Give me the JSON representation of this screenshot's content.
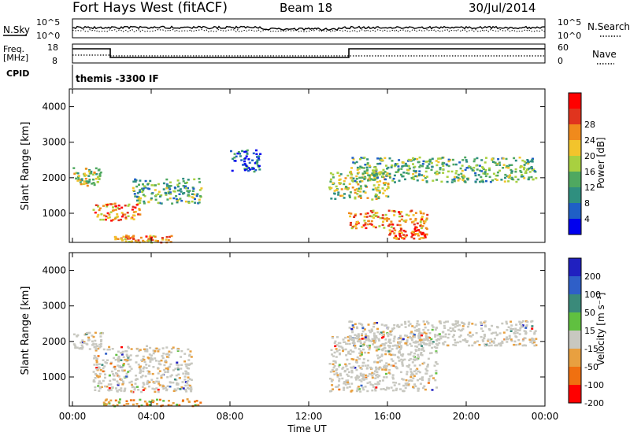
{
  "header": {
    "title": "Fort Hays West (fitACF)",
    "beam": "Beam 18",
    "date": "30/Jul/2014"
  },
  "strips": {
    "nsky_label": "N.Sky",
    "nsearch_label": "N.Search",
    "noise_ticks_left": [
      "10^5",
      "10^0"
    ],
    "noise_ticks_right": [
      "10^5",
      "10^0"
    ],
    "freq_label": "Freq.",
    "freq_unit": "[MHz]",
    "freq_ticks": [
      "18",
      "8"
    ],
    "nave_label": "Nave",
    "nave_ticks": [
      "60",
      "0"
    ],
    "cpid_label": "CPID",
    "cpid_text": "themis -3300 IF"
  },
  "axes": {
    "ylabel": "Slant Range [km]",
    "xlabel": "Time UT",
    "yticks": [
      "1000",
      "2000",
      "3000",
      "4000"
    ],
    "xticks": [
      "00:00",
      "04:00",
      "08:00",
      "12:00",
      "16:00",
      "20:00",
      "00:00"
    ]
  },
  "colorbars": {
    "power": {
      "label": "Power [dB]",
      "ticks": [
        "4",
        "8",
        "12",
        "16",
        "20",
        "24",
        "28"
      ],
      "colors": [
        "#0000ee",
        "#1f5fc6",
        "#2f8f7f",
        "#4fa860",
        "#a8d040",
        "#f2c42c",
        "#f08a1c",
        "#e0341e",
        "#ff0000"
      ]
    },
    "velocity": {
      "label": "Velocity [m s⁻¹]",
      "ticks": [
        "200",
        "100",
        "50",
        "15",
        "-15",
        "-50",
        "-100",
        "-200"
      ],
      "colors": [
        "#2020c0",
        "#2f5fc8",
        "#3a8a7a",
        "#60c040",
        "#c8c8c0",
        "#e8a040",
        "#f07010",
        "#ff0000"
      ]
    }
  },
  "chart_data": [
    {
      "type": "heatmap",
      "title": "Power",
      "x_range_hours": [
        0,
        24
      ],
      "y_range_km": [
        180,
        4500
      ],
      "colorbar_ticks": [
        4,
        8,
        12,
        16,
        20,
        24,
        28
      ],
      "echo_regions": [
        {
          "t": [
            0.0,
            1.4
          ],
          "range": [
            1800,
            2300
          ],
          "level": "medium-high"
        },
        {
          "t": [
            1.0,
            3.4
          ],
          "range": [
            800,
            1300
          ],
          "level": "high"
        },
        {
          "t": [
            2.0,
            5.0
          ],
          "range": [
            200,
            400
          ],
          "level": "high"
        },
        {
          "t": [
            3.0,
            6.5
          ],
          "range": [
            1300,
            2000
          ],
          "level": "medium"
        },
        {
          "t": [
            8.0,
            9.5
          ],
          "range": [
            2200,
            2800
          ],
          "level": "low"
        },
        {
          "t": [
            13.0,
            16.0
          ],
          "range": [
            1400,
            2200
          ],
          "level": "medium-high"
        },
        {
          "t": [
            14.0,
            18.0
          ],
          "range": [
            600,
            1100
          ],
          "level": "high"
        },
        {
          "t": [
            16.0,
            18.0
          ],
          "range": [
            300,
            600
          ],
          "level": "very-high"
        },
        {
          "t": [
            14.0,
            23.5
          ],
          "range": [
            1900,
            2600
          ],
          "level": "medium"
        }
      ]
    },
    {
      "type": "heatmap",
      "title": "Velocity",
      "x_range_hours": [
        0,
        24
      ],
      "y_range_km": [
        180,
        4500
      ],
      "colorbar_ticks": [
        200,
        100,
        50,
        15,
        -15,
        -50,
        -100,
        -200
      ],
      "echo_regions": [
        {
          "t": [
            0.0,
            1.5
          ],
          "range": [
            1800,
            2300
          ],
          "velocity": "near zero"
        },
        {
          "t": [
            1.0,
            6.0
          ],
          "range": [
            600,
            1900
          ],
          "velocity": "near zero"
        },
        {
          "t": [
            1.5,
            6.5
          ],
          "range": [
            200,
            400
          ],
          "velocity": "slow negative / positive"
        },
        {
          "t": [
            13.0,
            18.5
          ],
          "range": [
            600,
            2200
          ],
          "velocity": "near zero"
        },
        {
          "t": [
            14.0,
            23.5
          ],
          "range": [
            1900,
            2600
          ],
          "velocity": "near zero"
        }
      ]
    }
  ]
}
